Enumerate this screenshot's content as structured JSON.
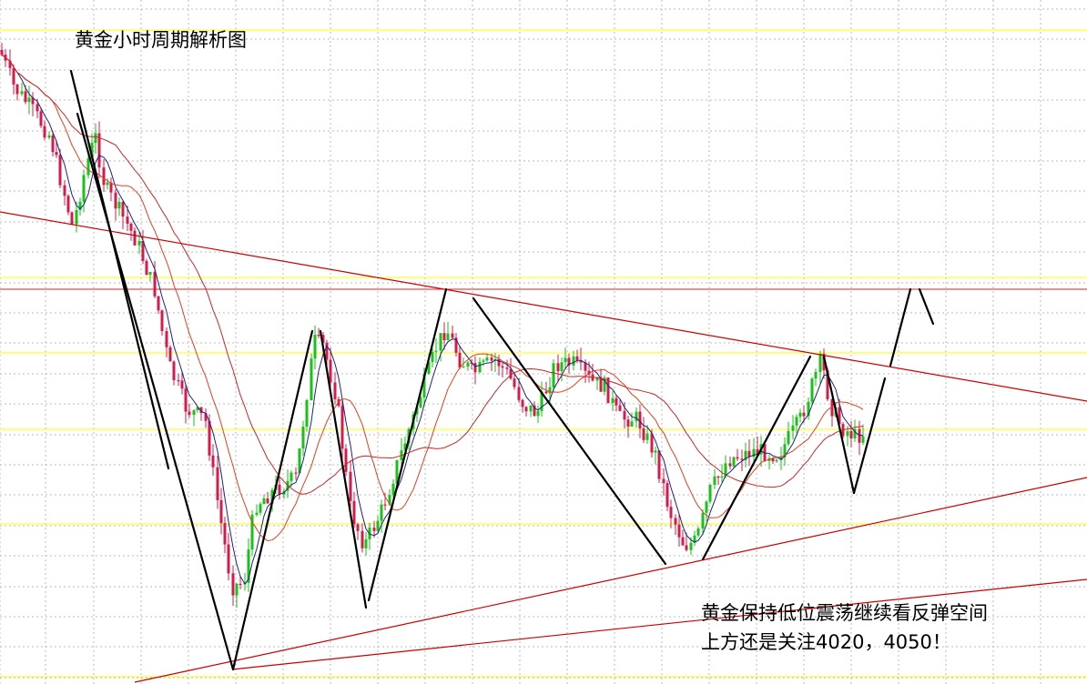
{
  "title": "黄金小时周期解析图",
  "notes": [
    "黄金保持低位震荡继续看反弹空间",
    "上方还是关注4020，4050！"
  ],
  "chart_data": {
    "type": "candlestick",
    "title": "黄金小时周期解析图",
    "annotations": [
      "黄金保持低位震荡继续看反弹空间",
      "上方还是关注4020，4050！"
    ],
    "key_levels": [
      4020,
      4050
    ],
    "grid": true,
    "colors": {
      "up": "#19c219",
      "down": "#d41c4c",
      "ma_fast": "#1a237e",
      "ma_mid": "#e04020",
      "ma_slow": "#c62828",
      "wave_line": "#000000",
      "trend_line": "#cc0000",
      "resistance": "#dd2222",
      "level_line": "#ffff00",
      "grid": "#bbbbbb"
    }
  }
}
